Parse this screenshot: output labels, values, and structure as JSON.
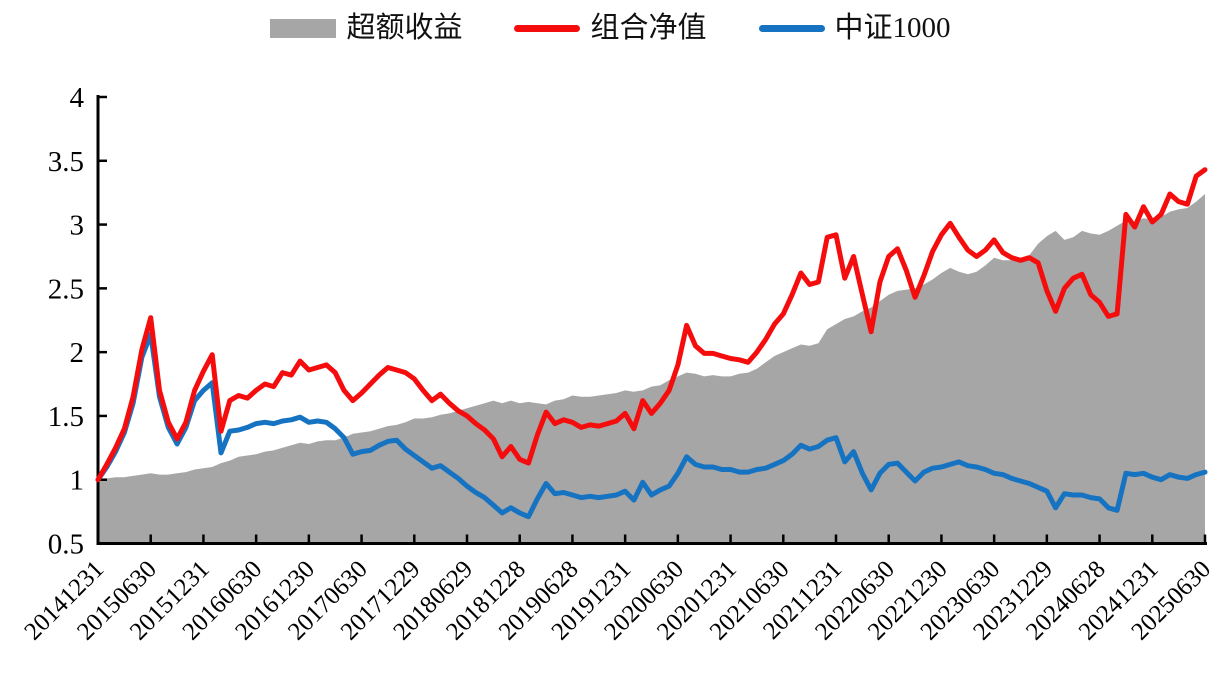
{
  "legend": {
    "items": [
      {
        "label": "超额收益",
        "type": "area",
        "color": "#a6a6a6"
      },
      {
        "label": "组合净值",
        "type": "line",
        "color": "#f50d0d"
      },
      {
        "label": "中证1000",
        "type": "line",
        "color": "#1673c1"
      }
    ]
  },
  "chart_data": {
    "type": "line",
    "title": "",
    "xlabel": "",
    "ylabel": "",
    "grid": false,
    "legend_position": "top-center",
    "x_axis": {
      "tick_labels": [
        "20141231",
        "20150630",
        "20151231",
        "20160630",
        "20161230",
        "20170630",
        "20171229",
        "20180629",
        "20181228",
        "20190628",
        "20191231",
        "20200630",
        "20201231",
        "20210630",
        "20211231",
        "20220630",
        "20221230",
        "20230630",
        "20231229",
        "20240628",
        "20241231",
        "20250630"
      ],
      "label_rotation_deg": 45,
      "points_per_tick": 6
    },
    "y_axis": {
      "min": 0.5,
      "max": 4,
      "tick_step": 0.5,
      "tick_labels": [
        "0.5",
        "1",
        "1.5",
        "2",
        "2.5",
        "3",
        "3.5",
        "4"
      ]
    },
    "sampling": "monthly, index 0 = 2014-12 through index 126 = 2025-06",
    "series": [
      {
        "name": "超额收益",
        "type": "area",
        "color": "#a6a6a6",
        "values": [
          1.0,
          1.01,
          1.02,
          1.02,
          1.03,
          1.04,
          1.05,
          1.04,
          1.04,
          1.05,
          1.06,
          1.08,
          1.09,
          1.1,
          1.13,
          1.15,
          1.18,
          1.19,
          1.2,
          1.22,
          1.23,
          1.25,
          1.27,
          1.29,
          1.28,
          1.3,
          1.31,
          1.31,
          1.33,
          1.36,
          1.37,
          1.38,
          1.4,
          1.42,
          1.43,
          1.45,
          1.48,
          1.48,
          1.49,
          1.51,
          1.52,
          1.54,
          1.56,
          1.58,
          1.6,
          1.62,
          1.6,
          1.62,
          1.6,
          1.61,
          1.6,
          1.59,
          1.62,
          1.63,
          1.66,
          1.65,
          1.65,
          1.66,
          1.67,
          1.68,
          1.7,
          1.69,
          1.7,
          1.73,
          1.74,
          1.78,
          1.81,
          1.84,
          1.83,
          1.81,
          1.82,
          1.81,
          1.81,
          1.83,
          1.84,
          1.87,
          1.92,
          1.97,
          2.0,
          2.03,
          2.06,
          2.05,
          2.07,
          2.18,
          2.22,
          2.26,
          2.28,
          2.32,
          2.35,
          2.4,
          2.45,
          2.48,
          2.49,
          2.5,
          2.53,
          2.57,
          2.62,
          2.66,
          2.63,
          2.61,
          2.63,
          2.68,
          2.74,
          2.72,
          2.72,
          2.73,
          2.76,
          2.85,
          2.91,
          2.95,
          2.88,
          2.9,
          2.95,
          2.93,
          2.92,
          2.95,
          2.99,
          3.03,
          3.02,
          3.05,
          3.04,
          3.06,
          3.1,
          3.12,
          3.13,
          3.18,
          3.24
        ]
      },
      {
        "name": "组合净值",
        "type": "line",
        "color": "#f50d0d",
        "values": [
          1.0,
          1.12,
          1.25,
          1.4,
          1.65,
          2.02,
          2.27,
          1.7,
          1.45,
          1.32,
          1.45,
          1.7,
          1.85,
          1.98,
          1.38,
          1.62,
          1.66,
          1.64,
          1.7,
          1.75,
          1.73,
          1.84,
          1.82,
          1.93,
          1.86,
          1.88,
          1.9,
          1.84,
          1.7,
          1.62,
          1.68,
          1.75,
          1.82,
          1.88,
          1.86,
          1.84,
          1.79,
          1.7,
          1.62,
          1.67,
          1.6,
          1.54,
          1.5,
          1.44,
          1.39,
          1.32,
          1.18,
          1.26,
          1.16,
          1.13,
          1.35,
          1.53,
          1.44,
          1.47,
          1.45,
          1.41,
          1.43,
          1.42,
          1.44,
          1.46,
          1.52,
          1.4,
          1.62,
          1.52,
          1.6,
          1.7,
          1.9,
          2.21,
          2.05,
          1.99,
          1.99,
          1.97,
          1.95,
          1.94,
          1.92,
          2.0,
          2.1,
          2.22,
          2.3,
          2.45,
          2.62,
          2.53,
          2.55,
          2.9,
          2.92,
          2.58,
          2.75,
          2.45,
          2.16,
          2.55,
          2.75,
          2.81,
          2.64,
          2.43,
          2.6,
          2.79,
          2.92,
          3.01,
          2.9,
          2.8,
          2.75,
          2.8,
          2.88,
          2.78,
          2.74,
          2.72,
          2.74,
          2.7,
          2.48,
          2.32,
          2.5,
          2.58,
          2.61,
          2.45,
          2.39,
          2.28,
          2.3,
          3.08,
          2.98,
          3.14,
          3.02,
          3.08,
          3.24,
          3.18,
          3.16,
          3.38,
          3.43
        ]
      },
      {
        "name": "中证1000",
        "type": "line",
        "color": "#1673c1",
        "values": [
          1.0,
          1.1,
          1.22,
          1.37,
          1.6,
          1.96,
          2.14,
          1.65,
          1.41,
          1.28,
          1.41,
          1.62,
          1.7,
          1.76,
          1.21,
          1.38,
          1.39,
          1.41,
          1.44,
          1.45,
          1.44,
          1.46,
          1.47,
          1.49,
          1.45,
          1.46,
          1.45,
          1.4,
          1.33,
          1.2,
          1.22,
          1.23,
          1.27,
          1.3,
          1.31,
          1.24,
          1.19,
          1.14,
          1.09,
          1.11,
          1.06,
          1.01,
          0.95,
          0.9,
          0.86,
          0.8,
          0.74,
          0.78,
          0.74,
          0.71,
          0.85,
          0.97,
          0.89,
          0.9,
          0.88,
          0.86,
          0.87,
          0.86,
          0.87,
          0.88,
          0.91,
          0.84,
          0.98,
          0.88,
          0.92,
          0.95,
          1.05,
          1.18,
          1.12,
          1.1,
          1.1,
          1.08,
          1.08,
          1.06,
          1.06,
          1.08,
          1.09,
          1.12,
          1.15,
          1.2,
          1.27,
          1.24,
          1.26,
          1.31,
          1.33,
          1.14,
          1.22,
          1.05,
          0.92,
          1.05,
          1.12,
          1.13,
          1.06,
          0.99,
          1.06,
          1.09,
          1.1,
          1.12,
          1.14,
          1.11,
          1.1,
          1.08,
          1.05,
          1.04,
          1.01,
          0.99,
          0.97,
          0.94,
          0.91,
          0.78,
          0.89,
          0.88,
          0.88,
          0.86,
          0.85,
          0.78,
          0.76,
          1.05,
          1.04,
          1.05,
          1.02,
          1.0,
          1.04,
          1.02,
          1.01,
          1.04,
          1.06
        ]
      }
    ]
  }
}
